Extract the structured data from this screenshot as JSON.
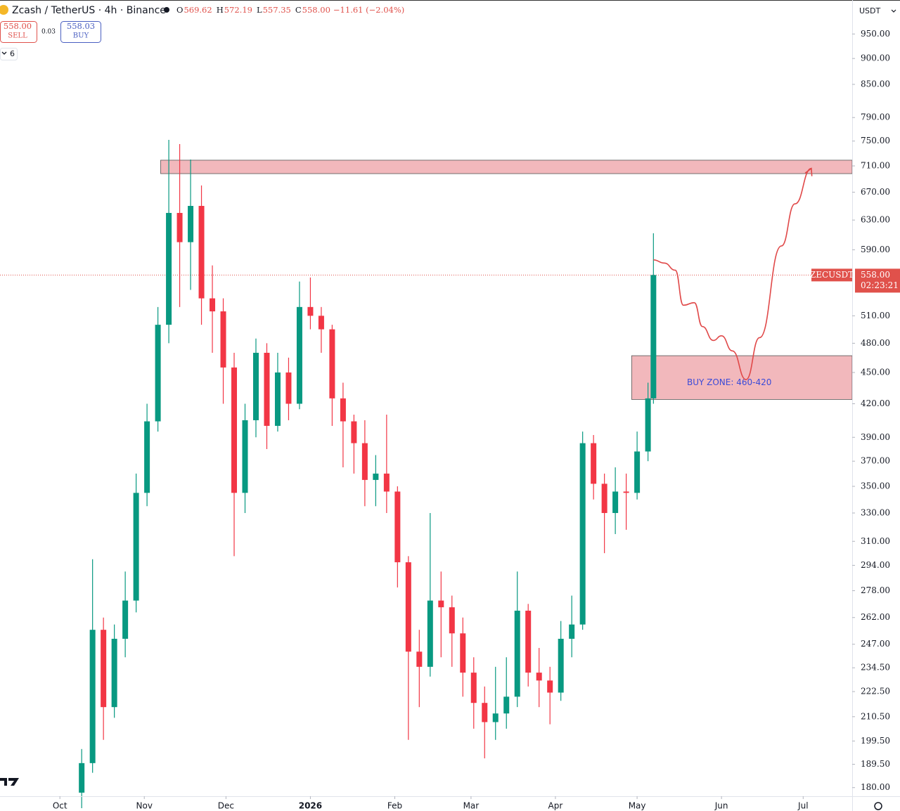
{
  "chart_data": {
    "type": "candlestick",
    "header": {
      "symbol": "Zcash / TetherUS · 4h · Binance",
      "ohlc": [
        {
          "key": "O",
          "value": "569.62"
        },
        {
          "key": "H",
          "value": "572.19"
        },
        {
          "key": "L",
          "value": "557.35"
        },
        {
          "key": "C",
          "value": "558.00"
        }
      ],
      "change": "−11.61 (−2.04%)"
    },
    "sell": {
      "price": "558.00",
      "label": "SELL"
    },
    "spread": "0.03",
    "buy": {
      "price": "558.03",
      "label": "BUY"
    },
    "indicators": "6",
    "currency": "USDT",
    "price_tag": {
      "symbol": "ZECUSDT",
      "value": 558,
      "label": "558.00",
      "countdown": "02:23:21"
    },
    "log_scale": true,
    "up_color": "#089981",
    "down_color": "#f23645",
    "x": [
      8,
      12,
      16,
      20,
      24,
      28,
      32,
      36,
      40,
      44,
      48,
      52,
      56,
      60,
      64,
      68,
      72,
      76,
      80,
      84,
      88,
      92,
      96,
      100,
      104,
      108,
      112,
      116,
      120,
      124,
      128,
      132,
      136,
      140,
      144,
      148,
      152,
      156,
      160,
      164,
      168,
      172,
      176,
      180,
      184,
      188,
      192,
      196,
      200,
      204,
      208,
      212,
      216,
      218
    ],
    "open": [
      178,
      190,
      255,
      215,
      250,
      272,
      345,
      404,
      500,
      640,
      600,
      650,
      530,
      515,
      455,
      345,
      405,
      470,
      400,
      450,
      420,
      520,
      510,
      495,
      425,
      404,
      385,
      355,
      360,
      346,
      296,
      243,
      235,
      272,
      268,
      253,
      232,
      217,
      208,
      212,
      220,
      266,
      232,
      228,
      222,
      250,
      258,
      385,
      352,
      330,
      346,
      345,
      378,
      425
    ],
    "high": [
      196,
      298,
      262,
      258,
      290,
      360,
      420,
      520,
      752,
      745,
      720,
      680,
      570,
      530,
      470,
      420,
      485,
      480,
      470,
      465,
      550,
      555,
      520,
      500,
      440,
      410,
      405,
      375,
      410,
      350,
      300,
      255,
      330,
      290,
      275,
      262,
      240,
      225,
      235,
      240,
      290,
      270,
      245,
      235,
      260,
      275,
      395,
      392,
      360,
      365,
      360,
      395,
      440,
      612
    ],
    "low": [
      172,
      186,
      200,
      210,
      240,
      265,
      335,
      395,
      480,
      520,
      540,
      500,
      470,
      420,
      300,
      330,
      390,
      380,
      395,
      405,
      415,
      495,
      470,
      400,
      365,
      360,
      335,
      335,
      330,
      280,
      200,
      215,
      230,
      240,
      235,
      220,
      205,
      192,
      200,
      205,
      215,
      225,
      215,
      207,
      218,
      240,
      255,
      340,
      302,
      315,
      318,
      340,
      370,
      420
    ],
    "close": [
      190,
      255,
      215,
      250,
      272,
      345,
      404,
      500,
      640,
      600,
      650,
      530,
      515,
      455,
      345,
      405,
      470,
      400,
      450,
      420,
      520,
      510,
      495,
      425,
      404,
      385,
      355,
      360,
      346,
      296,
      243,
      235,
      272,
      268,
      253,
      232,
      217,
      208,
      212,
      220,
      266,
      232,
      228,
      222,
      250,
      258,
      385,
      352,
      330,
      346,
      345,
      378,
      425,
      558
    ],
    "xlim": [
      -22,
      291
    ],
    "xticks": [
      {
        "value": 0,
        "label": "Oct"
      },
      {
        "value": 31,
        "label": "Nov"
      },
      {
        "value": 61,
        "label": "Dec"
      },
      {
        "value": 92,
        "label": "2026"
      },
      {
        "value": 123,
        "label": "Feb"
      },
      {
        "value": 151,
        "label": "Mar"
      },
      {
        "value": 182,
        "label": "Apr"
      },
      {
        "value": 212,
        "label": "May"
      },
      {
        "value": 243,
        "label": "Jun"
      },
      {
        "value": 273,
        "label": "Jul"
      }
    ],
    "ylim": [
      176.6,
      1024
    ],
    "yticks": [
      {
        "value": 950,
        "label": "950.00"
      },
      {
        "value": 900,
        "label": "900.00"
      },
      {
        "value": 850,
        "label": "850.00"
      },
      {
        "value": 790,
        "label": "790.00"
      },
      {
        "value": 750,
        "label": "750.00"
      },
      {
        "value": 710,
        "label": "710.00"
      },
      {
        "value": 670,
        "label": "670.00"
      },
      {
        "value": 630,
        "label": "630.00"
      },
      {
        "value": 590,
        "label": "590.00"
      },
      {
        "value": 510,
        "label": "510.00"
      },
      {
        "value": 480,
        "label": "480.00"
      },
      {
        "value": 450,
        "label": "450.00"
      },
      {
        "value": 420,
        "label": "420.00"
      },
      {
        "value": 390,
        "label": "390.00"
      },
      {
        "value": 370,
        "label": "370.00"
      },
      {
        "value": 350,
        "label": "350.00"
      },
      {
        "value": 330,
        "label": "330.00"
      },
      {
        "value": 310,
        "label": "310.00"
      },
      {
        "value": 294,
        "label": "294.00"
      },
      {
        "value": 278,
        "label": "278.00"
      },
      {
        "value": 262,
        "label": "262.00"
      },
      {
        "value": 247,
        "label": "247.00"
      },
      {
        "value": 234.5,
        "label": "234.50"
      },
      {
        "value": 222.5,
        "label": "222.50"
      },
      {
        "value": 210.5,
        "label": "210.50"
      },
      {
        "value": 199.5,
        "label": "199.50"
      },
      {
        "value": 189.5,
        "label": "189.50"
      },
      {
        "value": 180,
        "label": "180.00"
      }
    ],
    "zones": [
      {
        "x": [
          37,
          291
        ],
        "y": [
          698,
          719
        ]
      },
      {
        "x": [
          210,
          291
        ],
        "y": [
          424,
          467
        ],
        "label": "BUY ZONE: 460-420"
      }
    ],
    "zone_color": "#f2b8bc",
    "projection": {
      "color": "#e04848",
      "x": [
        218,
        222,
        226,
        229,
        233,
        236,
        240,
        243,
        247,
        252,
        257,
        265,
        270,
        276
      ],
      "y": [
        577,
        573,
        564,
        522,
        525,
        498,
        483,
        488,
        472,
        443,
        486,
        595,
        653,
        706
      ]
    }
  }
}
